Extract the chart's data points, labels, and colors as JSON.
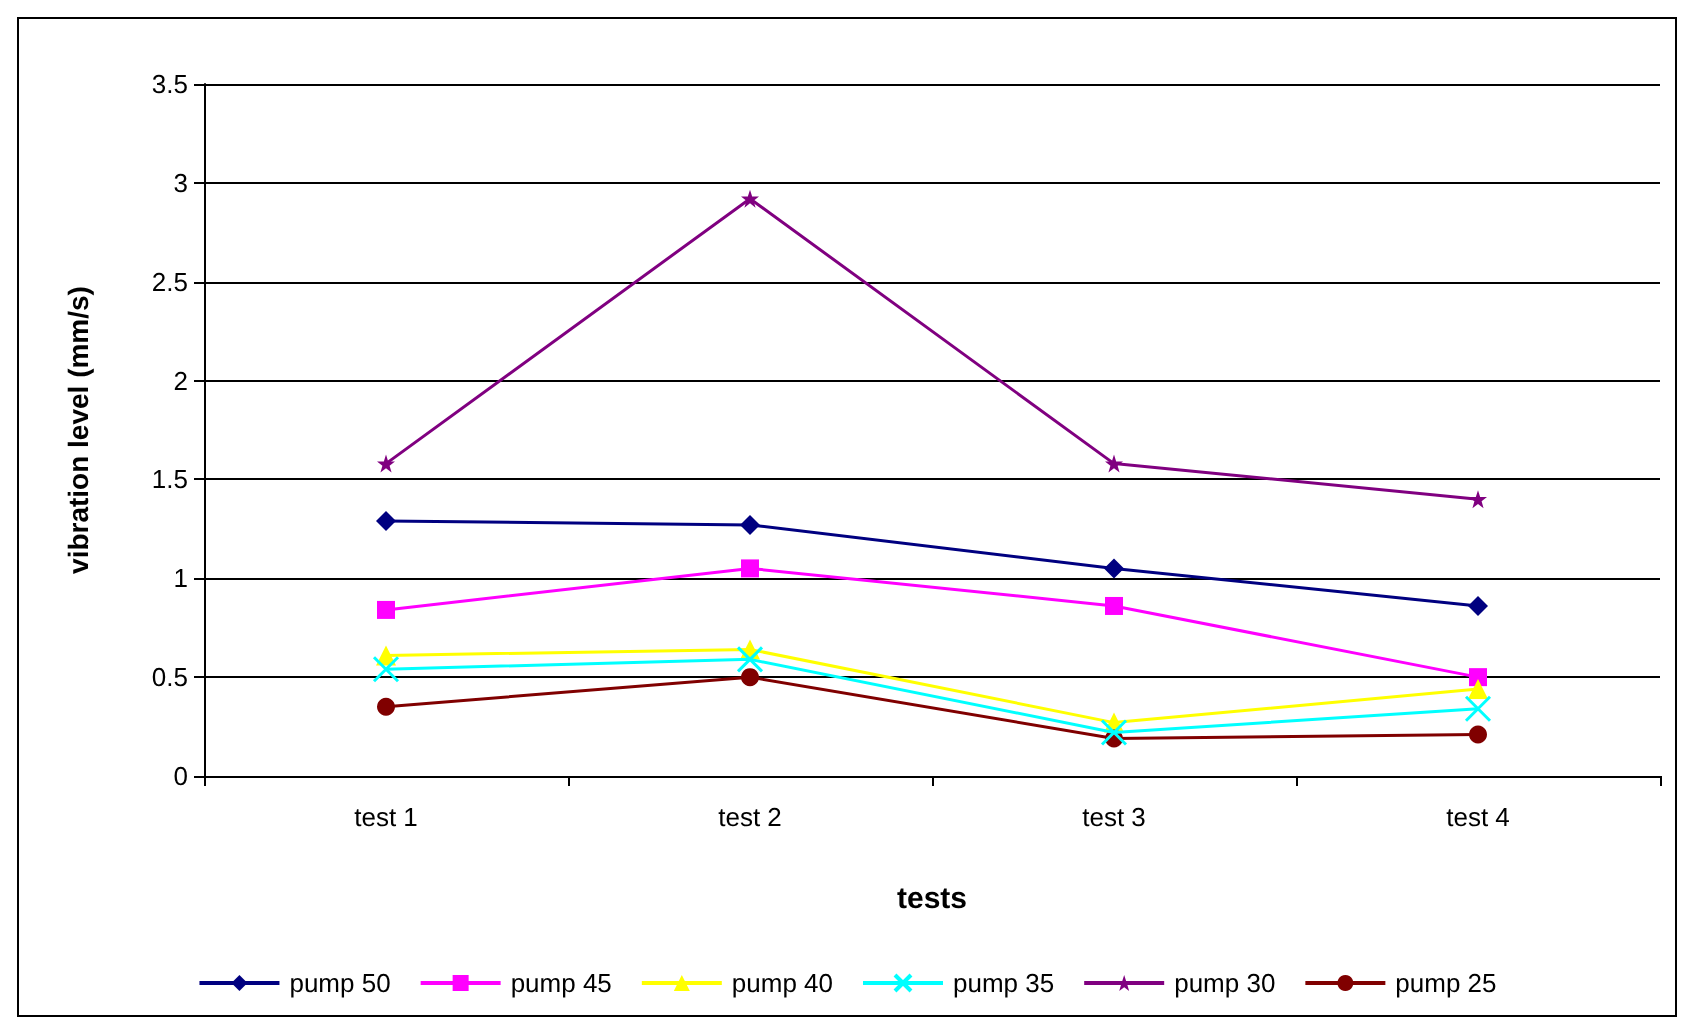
{
  "chart_data": {
    "type": "line",
    "xlabel": "tests",
    "ylabel": "vibration level (mm/s)",
    "categories": [
      "test 1",
      "test 2",
      "test 3",
      "test 4"
    ],
    "ylim": [
      0,
      3.5
    ],
    "yticks": [
      0,
      0.5,
      1,
      1.5,
      2,
      2.5,
      3,
      3.5
    ],
    "grid": "y",
    "legend": "bottom",
    "series": [
      {
        "name": "pump 50",
        "color": "#000080",
        "marker": "diamond",
        "values": [
          1.29,
          1.27,
          1.05,
          0.86
        ]
      },
      {
        "name": "pump 45",
        "color": "#ff00ff",
        "marker": "square",
        "values": [
          0.84,
          1.05,
          0.86,
          0.5
        ]
      },
      {
        "name": "pump 40",
        "color": "#ffff00",
        "marker": "triangle",
        "values": [
          0.61,
          0.64,
          0.27,
          0.44
        ]
      },
      {
        "name": "pump 35",
        "color": "#00ffff",
        "marker": "cross",
        "values": [
          0.54,
          0.59,
          0.22,
          0.34
        ]
      },
      {
        "name": "pump 30",
        "color": "#800080",
        "marker": "star",
        "values": [
          1.58,
          2.92,
          1.58,
          1.4
        ]
      },
      {
        "name": "pump 25",
        "color": "#800000",
        "marker": "circle",
        "values": [
          0.35,
          0.5,
          0.19,
          0.21
        ]
      }
    ]
  }
}
